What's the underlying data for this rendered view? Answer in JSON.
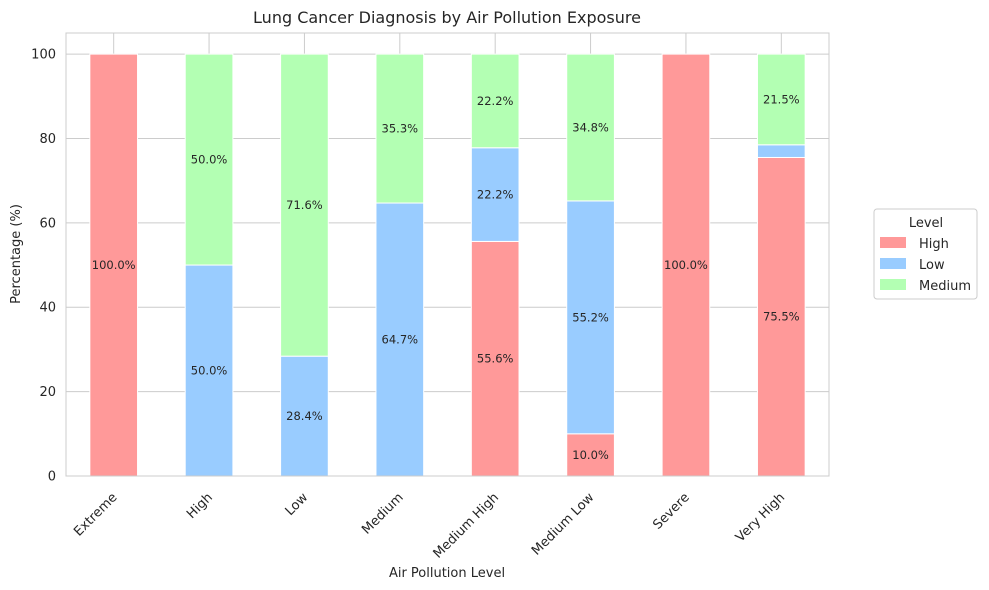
{
  "chart_data": {
    "type": "bar",
    "stacked": true,
    "title": "Lung Cancer Diagnosis by Air Pollution Exposure",
    "xlabel": "Air Pollution Level",
    "ylabel": "Percentage (%)",
    "ylim": [
      0,
      105
    ],
    "yticks": [
      0,
      20,
      40,
      60,
      80,
      100
    ],
    "grid": true,
    "categories": [
      "Extreme",
      "High",
      "Low",
      "Medium",
      "Medium High",
      "Medium Low",
      "Severe",
      "Very High"
    ],
    "series": [
      {
        "name": "High",
        "color": "#ff9999",
        "values": [
          100.0,
          0,
          0,
          0,
          55.6,
          10.0,
          100.0,
          75.5
        ]
      },
      {
        "name": "Low",
        "color": "#99ccff",
        "values": [
          0,
          50.0,
          28.4,
          64.7,
          22.2,
          55.2,
          0,
          3.0
        ]
      },
      {
        "name": "Medium",
        "color": "#b3ffb3",
        "values": [
          0,
          50.0,
          71.6,
          35.3,
          22.2,
          34.8,
          0,
          21.5
        ]
      }
    ],
    "data_labels": [
      [
        "100.0%",
        "",
        "",
        "",
        "55.6%",
        "10.0%",
        "100.0%",
        "75.5%"
      ],
      [
        "",
        "50.0%",
        "28.4%",
        "64.7%",
        "22.2%",
        "55.2%",
        "",
        ""
      ],
      [
        "",
        "50.0%",
        "71.6%",
        "35.3%",
        "22.2%",
        "34.8%",
        "",
        "21.5%"
      ]
    ],
    "legend": {
      "title": "Level",
      "position": "right"
    }
  }
}
